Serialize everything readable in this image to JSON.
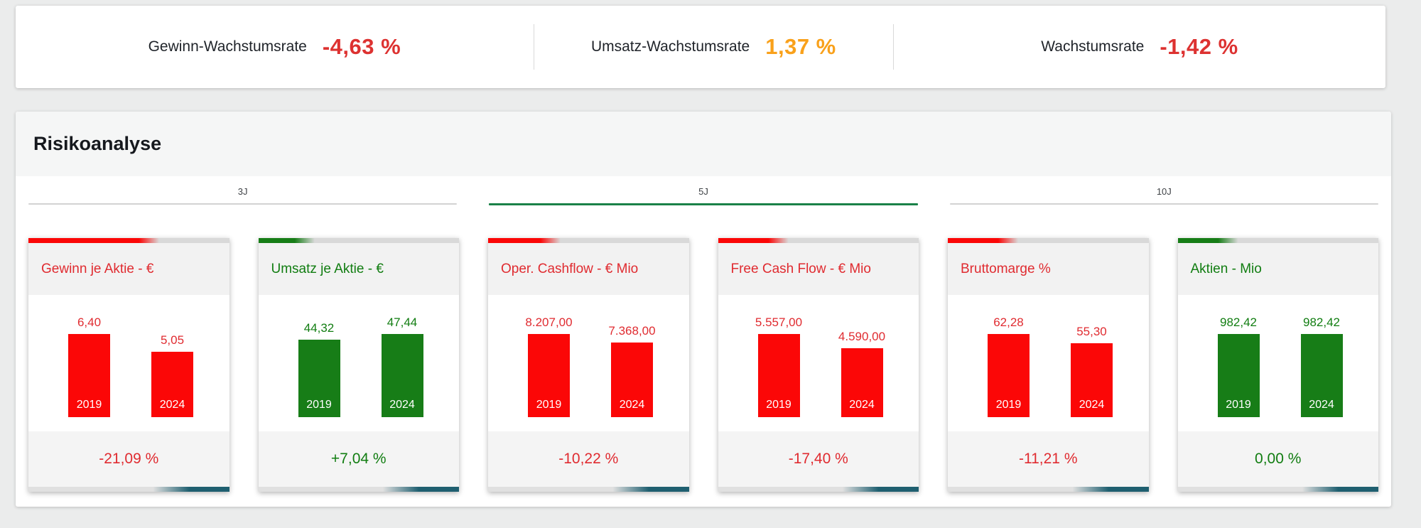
{
  "colors": {
    "page_bg": "#ebecec",
    "red_text": "#e02b30",
    "red_bar": "#fb0707",
    "green_text": "#117d11",
    "green_bar": "#177d17",
    "orange_text": "#f9a11b",
    "strip_gray": "#d9d9d9",
    "strip_teal": "#1f5f70",
    "tab_active_green": "#1a8148"
  },
  "kpi_bar": {
    "items": [
      {
        "label": "Gewinn-Wachstumsrate",
        "value": "-4,63 %",
        "tone": "red"
      },
      {
        "label": "Umsatz-Wachstumsrate",
        "value": "1,37 %",
        "tone": "orange"
      },
      {
        "label": "Wachstumsrate",
        "value": "-1,42 %",
        "tone": "red"
      }
    ]
  },
  "risk_panel": {
    "title": "Risikoanalyse",
    "tabs": [
      {
        "label": "3J",
        "active": false
      },
      {
        "label": "5J",
        "active": true
      },
      {
        "label": "10J",
        "active": false
      }
    ]
  },
  "chart_data": [
    {
      "type": "bar",
      "title": "Gewinn je Aktie - €",
      "categories": [
        "2019",
        "2024"
      ],
      "values": [
        6.4,
        5.05
      ],
      "value_labels": [
        "6,40",
        "5,05"
      ],
      "change_label": "-21,09 %",
      "trend": "negative",
      "top_strip_pct": 55
    },
    {
      "type": "bar",
      "title": "Umsatz je Aktie - €",
      "categories": [
        "2019",
        "2024"
      ],
      "values": [
        44.32,
        47.44
      ],
      "value_labels": [
        "44,32",
        "47,44"
      ],
      "change_label": "+7,04 %",
      "trend": "positive",
      "top_strip_pct": 18
    },
    {
      "type": "bar",
      "title": "Oper. Cashflow - € Mio",
      "categories": [
        "2019",
        "2024"
      ],
      "values": [
        8207,
        7368
      ],
      "value_labels": [
        "8.207,00",
        "7.368,00"
      ],
      "change_label": "-10,22 %",
      "trend": "negative",
      "top_strip_pct": 26
    },
    {
      "type": "bar",
      "title": "Free Cash Flow - € Mio",
      "categories": [
        "2019",
        "2024"
      ],
      "values": [
        5557,
        4590
      ],
      "value_labels": [
        "5.557,00",
        "4.590,00"
      ],
      "change_label": "-17,40 %",
      "trend": "negative",
      "top_strip_pct": 25
    },
    {
      "type": "bar",
      "title": "Bruttomarge %",
      "categories": [
        "2019",
        "2024"
      ],
      "values": [
        62.28,
        55.3
      ],
      "value_labels": [
        "62,28",
        "55,30"
      ],
      "change_label": "-11,21 %",
      "trend": "negative",
      "top_strip_pct": 25
    },
    {
      "type": "bar",
      "title": "Aktien - Mio",
      "categories": [
        "2019",
        "2024"
      ],
      "values": [
        982.42,
        982.42
      ],
      "value_labels": [
        "982,42",
        "982,42"
      ],
      "change_label": "0,00 %",
      "trend": "positive",
      "top_strip_pct": 20
    }
  ]
}
